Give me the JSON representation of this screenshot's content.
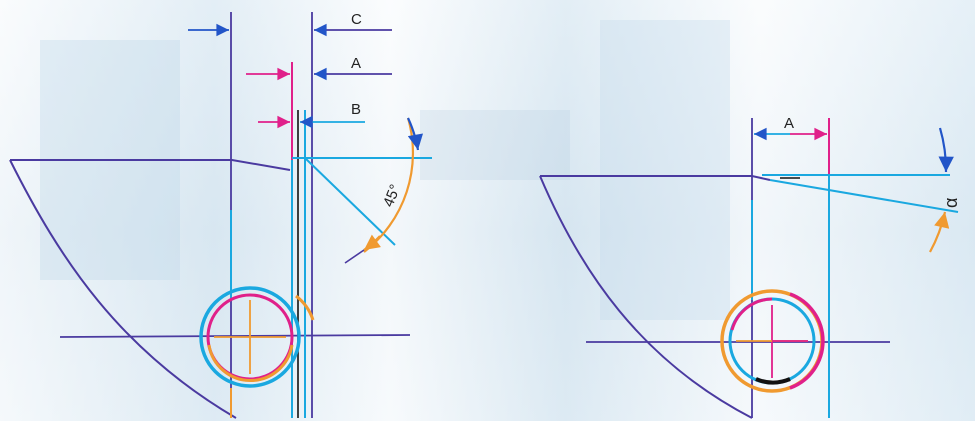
{
  "left_figure": {
    "labels": {
      "c": "C",
      "a": "A",
      "b": "B",
      "angle": "45°"
    }
  },
  "right_figure": {
    "labels": {
      "a": "A",
      "angle": "α"
    }
  },
  "colors": {
    "outline": "#4a3aa0",
    "cyan": "#1aa8e0",
    "magenta": "#e0208a",
    "orange": "#f09a30",
    "black": "#111111",
    "blue_arrow": "#2255c8"
  }
}
